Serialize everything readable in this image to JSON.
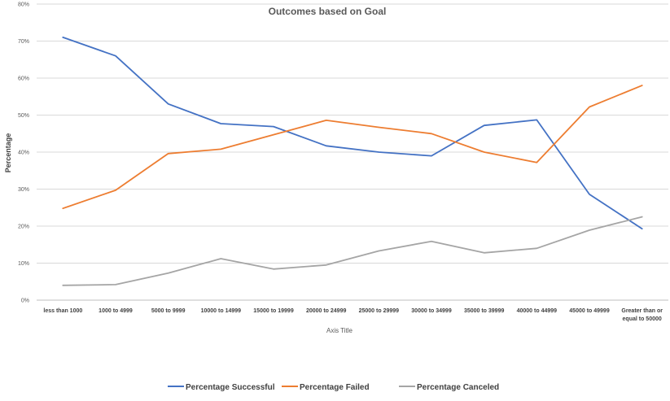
{
  "chart_data": {
    "type": "line",
    "title": "Outcomes based on Goal",
    "xlabel": "Axis Title",
    "ylabel": "Percentage",
    "ylim": [
      0,
      0.8
    ],
    "y_ticks": [
      "0%",
      "10%",
      "20%",
      "30%",
      "40%",
      "50%",
      "60%",
      "70%",
      "80%"
    ],
    "grid": true,
    "legend_position": "bottom",
    "categories": [
      "less than 1000",
      "1000 to 4999",
      "5000 to 9999",
      "10000 to 14999",
      "15000 to 19999",
      "20000 to 24999",
      "25000 to 29999",
      "30000 to 34999",
      "35000 to 39999",
      "40000 to 44999",
      "45000 to 49999",
      "Greater than or equal to 50000"
    ],
    "category_label_lines": [
      [
        "less than 1000"
      ],
      [
        "1000 to 4999"
      ],
      [
        "5000 to 9999"
      ],
      [
        "10000 to 14999"
      ],
      [
        "15000 to 19999"
      ],
      [
        "20000 to 24999"
      ],
      [
        "25000 to 29999"
      ],
      [
        "30000 to 34999"
      ],
      [
        "35000 to 39999"
      ],
      [
        "40000 to 44999"
      ],
      [
        "45000 to 49999"
      ],
      [
        "Greater than or",
        "equal to 50000"
      ]
    ],
    "series": [
      {
        "name": "Percentage Successful",
        "color": "#4472C4",
        "values": [
          0.71,
          0.66,
          0.53,
          0.477,
          0.469,
          0.417,
          0.4,
          0.39,
          0.472,
          0.487,
          0.286,
          0.193
        ]
      },
      {
        "name": "Percentage Failed",
        "color": "#ED7D31",
        "values": [
          0.248,
          0.297,
          0.396,
          0.408,
          0.447,
          0.486,
          0.467,
          0.45,
          0.4,
          0.372,
          0.522,
          0.58
        ]
      },
      {
        "name": "Percentage Canceled",
        "color": "#A5A5A5",
        "values": [
          0.04,
          0.042,
          0.073,
          0.112,
          0.084,
          0.095,
          0.133,
          0.159,
          0.128,
          0.14,
          0.189,
          0.225
        ]
      }
    ]
  }
}
